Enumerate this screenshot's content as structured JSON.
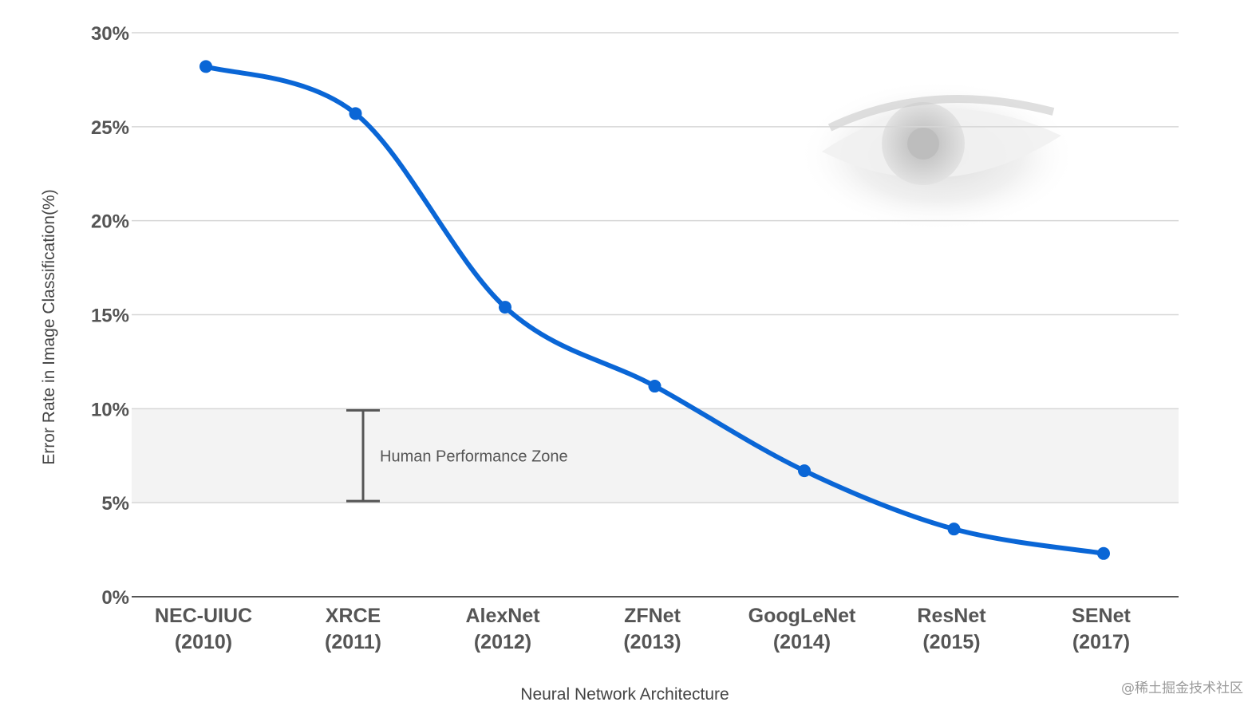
{
  "chart_data": {
    "type": "line",
    "title": "",
    "xlabel": "Neural Network Architecture",
    "ylabel": "Error Rate in Image Classification(%)",
    "ylim": [
      0,
      30
    ],
    "yticks": [
      0,
      5,
      10,
      15,
      20,
      25,
      30
    ],
    "ytick_labels": [
      "0%",
      "5%",
      "10%",
      "15%",
      "20%",
      "25%",
      "30%"
    ],
    "grid": true,
    "categories": [
      {
        "name": "NEC-UIUC",
        "year": "(2010)"
      },
      {
        "name": "XRCE",
        "year": "(2011)"
      },
      {
        "name": "AlexNet",
        "year": "(2012)"
      },
      {
        "name": "ZFNet",
        "year": "(2013)"
      },
      {
        "name": "GoogLeNet",
        "year": "(2014)"
      },
      {
        "name": "ResNet",
        "year": "(2015)"
      },
      {
        "name": "SENet",
        "year": "(2017)"
      }
    ],
    "series": [
      {
        "values": [
          28.2,
          25.7,
          15.4,
          11.2,
          6.7,
          3.6,
          2.3
        ],
        "color": "#0a66d6"
      }
    ],
    "bands": [
      {
        "from": 5,
        "to": 10,
        "label": "Human Performance Zone",
        "color": "#f3f3f3"
      }
    ],
    "background_image": "eye-image"
  },
  "watermark": "@稀土掘金技术社区"
}
